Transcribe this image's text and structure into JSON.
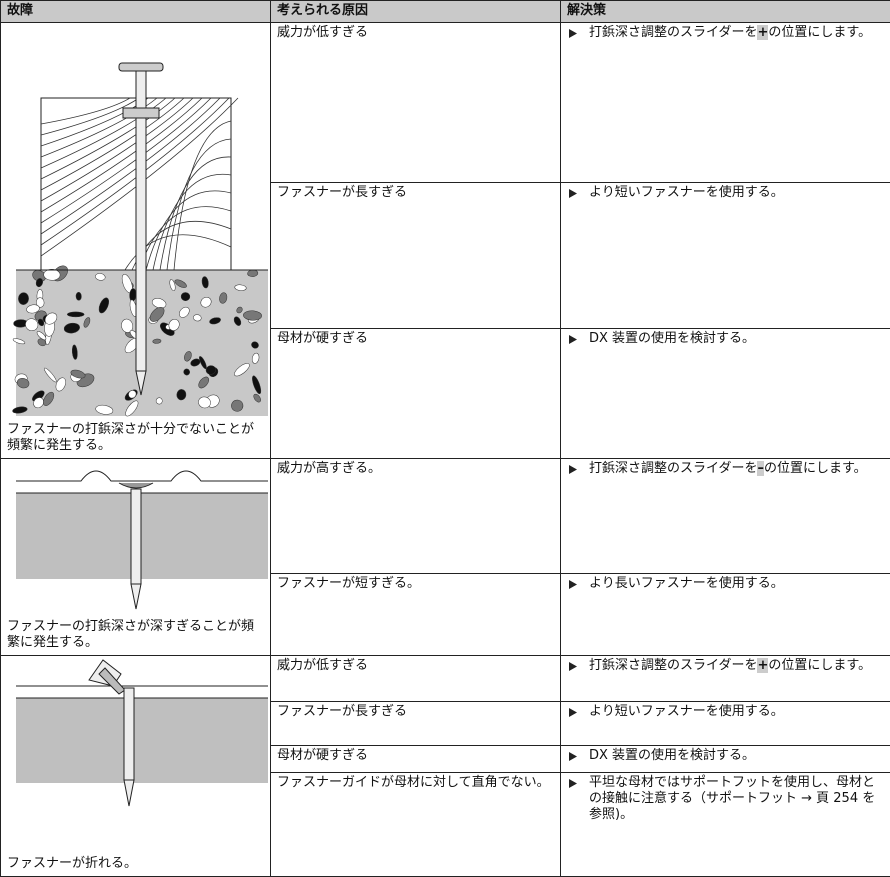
{
  "header": [
    "故障",
    "考えられる原因",
    "解決策"
  ],
  "groups": [
    {
      "fault": "ファスナーの打鋲深さが十分でないことが頻繁に発生する。",
      "rows": [
        {
          "cause": "威力が低すぎる",
          "solution": [
            "打鋲深さ調整のスライダーを",
            "+",
            "の位置にします。"
          ]
        },
        {
          "cause": "ファスナーが長すぎる",
          "solution": [
            "より短いファスナーを使用する。"
          ]
        },
        {
          "cause": "母材が硬すぎる",
          "solution": [
            "DX 装置の使用を検討する。"
          ]
        }
      ]
    },
    {
      "fault": "ファスナーの打鋲深さが深すぎることが頻繁に発生する。",
      "rows": [
        {
          "cause": "威力が高すぎる。",
          "solution": [
            "打鋲深さ調整のスライダーを",
            "–",
            "の位置にします。"
          ]
        },
        {
          "cause": "ファスナーが短すぎる。",
          "solution": [
            "より長いファスナーを使用する。"
          ]
        }
      ]
    },
    {
      "fault": "ファスナーが折れる。",
      "rows": [
        {
          "cause": "威力が低すぎる",
          "solution": [
            "打鋲深さ調整のスライダーを",
            "+",
            "の位置にします。"
          ]
        },
        {
          "cause": "ファスナーが長すぎる",
          "solution": [
            "より短いファスナーを使用する。"
          ]
        },
        {
          "cause": "母材が硬すぎる",
          "solution": [
            "DX 装置の使用を検討する。"
          ]
        },
        {
          "cause": "ファスナーガイドが母材に対して直角でない。",
          "solution": [
            "平坦な母材ではサポートフットを使用し、母材との接触に注意する（サポートフット → 頁 254 を参照)。"
          ]
        }
      ]
    }
  ]
}
